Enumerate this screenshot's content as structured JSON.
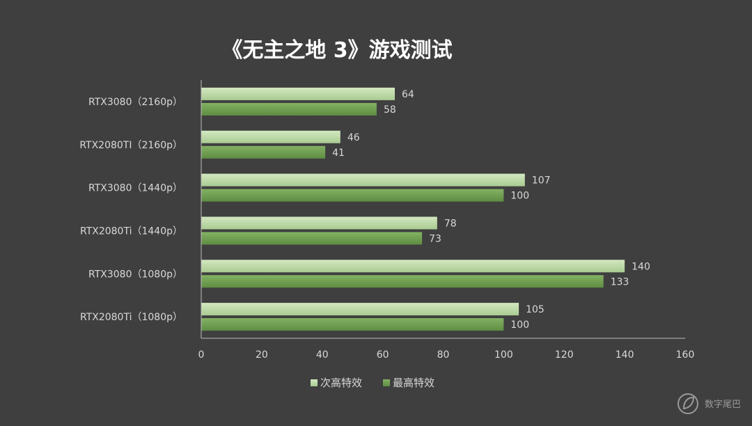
{
  "chart_data": {
    "type": "bar",
    "orientation": "horizontal",
    "title": "《无主之地 3》游戏测试",
    "categories": [
      "RTX3080（2160p）",
      "RTX2080TI（2160p）",
      "RTX3080（1440p）",
      "RTX2080Ti（1440p）",
      "RTX3080（1080p）",
      "RTX2080Ti（1080p）"
    ],
    "series": [
      {
        "name": "次高特效",
        "values": [
          64,
          46,
          107,
          78,
          140,
          105
        ],
        "color": "#b9d7a3"
      },
      {
        "name": "最高特效",
        "values": [
          58,
          41,
          100,
          73,
          133,
          100
        ],
        "color": "#6b9a4e"
      }
    ],
    "xlim": [
      0,
      160
    ],
    "xticks": [
      0,
      20,
      40,
      60,
      80,
      100,
      120,
      140,
      160
    ],
    "grid": false,
    "legend_position": "bottom"
  },
  "watermark": {
    "text": "数字尾巴",
    "icon": "leaf-logo-icon"
  },
  "colors": {
    "background": "#3f3f3f",
    "axis": "#bfbfbf"
  }
}
